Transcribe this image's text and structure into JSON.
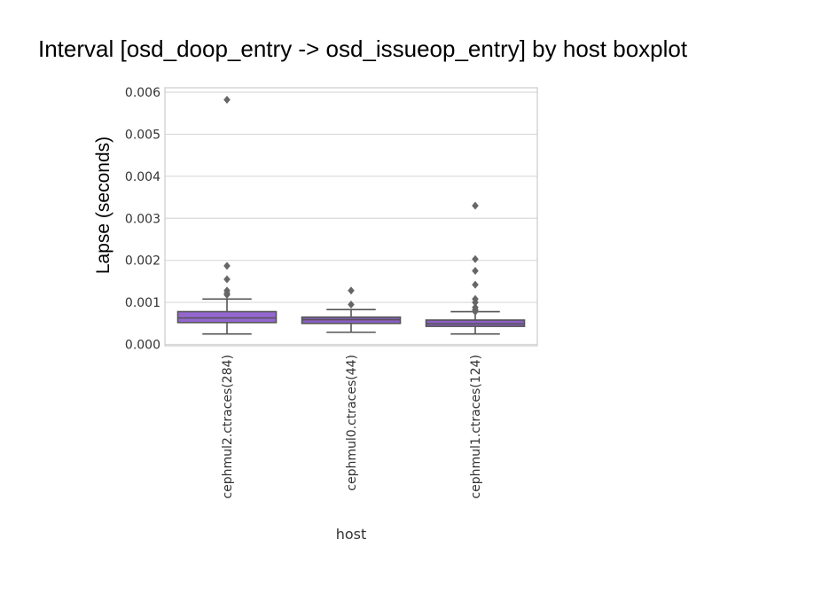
{
  "title": "Interval [osd_doop_entry -> osd_issueop_entry] by host boxplot",
  "colors": {
    "box_fill": "#9467d0",
    "box_fill_light": "#8c5fc5",
    "line": "#555555",
    "grid": "#d9d9d9",
    "frame": "#cccccc"
  },
  "chart_data": {
    "type": "boxplot",
    "title": "Interval [osd_doop_entry -> osd_issueop_entry] by host boxplot",
    "xlabel": "host",
    "ylabel": "Lapse (seconds)",
    "ylim": [
      0,
      0.006
    ],
    "yticks": [
      0.0,
      0.001,
      0.002,
      0.003,
      0.004,
      0.005,
      0.006
    ],
    "ytick_labels": [
      "0.000",
      "0.001",
      "0.002",
      "0.003",
      "0.004",
      "0.005",
      "0.006"
    ],
    "grid": true,
    "categories": [
      "cephmul2.ctraces(284)",
      "cephmul0.ctraces(44)",
      "cephmul1.ctraces(124)"
    ],
    "boxes": [
      {
        "whisker_low": 0.00025,
        "q1": 0.00052,
        "median": 0.00063,
        "q3": 0.00078,
        "whisker_high": 0.00108,
        "outliers": [
          0.00582,
          0.00187,
          0.00155,
          0.00128,
          0.00122,
          0.00118
        ]
      },
      {
        "whisker_low": 0.00029,
        "q1": 0.0005,
        "median": 0.00059,
        "q3": 0.00065,
        "whisker_high": 0.00083,
        "outliers": [
          0.00128,
          0.00095
        ]
      },
      {
        "whisker_low": 0.00025,
        "q1": 0.00043,
        "median": 0.00049,
        "q3": 0.00058,
        "whisker_high": 0.00078,
        "outliers": [
          0.0033,
          0.00203,
          0.00175,
          0.00142,
          0.00108,
          0.001,
          0.00088,
          0.00082,
          0.00078
        ]
      }
    ]
  }
}
